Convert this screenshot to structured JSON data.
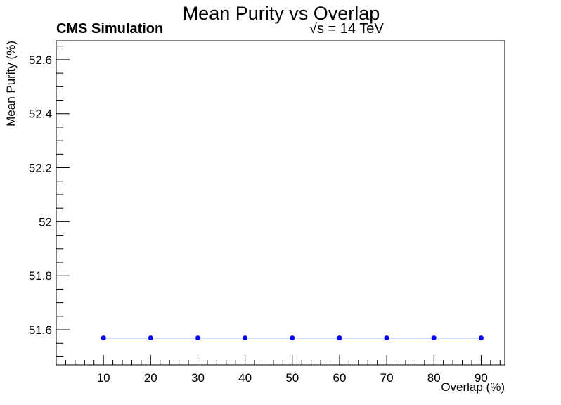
{
  "chart_data": {
    "type": "line",
    "title": "Mean Purity vs Overlap",
    "annotations": {
      "experiment": "CMS Simulation",
      "energy": "√s = 14 TeV"
    },
    "xlabel": "Overlap (%)",
    "ylabel": "Mean Purity (%)",
    "xlim": [
      0,
      95
    ],
    "ylim": [
      51.47,
      52.67
    ],
    "x_ticks": [
      10,
      20,
      30,
      40,
      50,
      60,
      70,
      80,
      90
    ],
    "y_ticks": [
      51.6,
      51.8,
      52,
      52.2,
      52.4,
      52.6
    ],
    "x_tick_labels": [
      "10",
      "20",
      "30",
      "40",
      "50",
      "60",
      "70",
      "80",
      "90"
    ],
    "y_tick_labels": [
      "51.6",
      "51.8",
      "52",
      "52.2",
      "52.4",
      "52.6"
    ],
    "grid": false,
    "legend": "none",
    "series": [
      {
        "color": "#0000ff",
        "x": [
          10,
          20,
          30,
          40,
          50,
          60,
          70,
          80,
          90
        ],
        "values": [
          51.57,
          51.57,
          51.57,
          51.57,
          51.57,
          51.57,
          51.57,
          51.57,
          51.57
        ]
      }
    ]
  }
}
